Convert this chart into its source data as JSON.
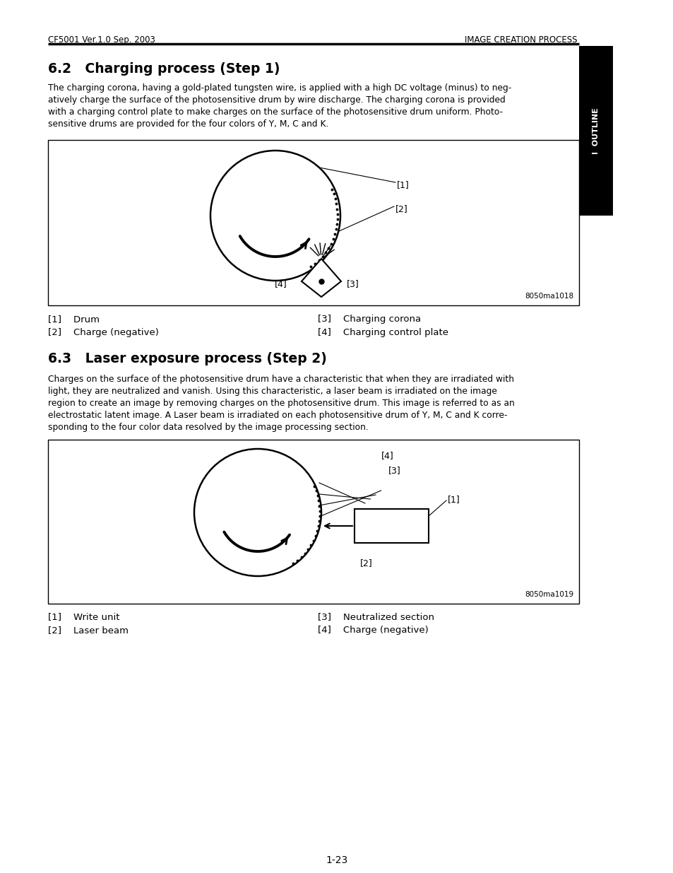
{
  "header_left": "CF5001 Ver.1.0 Sep. 2003",
  "header_right": "IMAGE CREATION PROCESS",
  "tab_label": "I  OUTLINE",
  "section1_title": "6.2   Charging process (Step 1)",
  "section1_body_lines": [
    "The charging corona, having a gold-plated tungsten wire, is applied with a high DC voltage (minus) to neg-",
    "atively charge the surface of the photosensitive drum by wire discharge. The charging corona is provided",
    "with a charging control plate to make charges on the surface of the photosensitive drum uniform. Photo-",
    "sensitive drums are provided for the four colors of Y, M, C and K."
  ],
  "diagram1_label": "8050ma1018",
  "diag1_items_left": [
    "[1]    Drum",
    "[2]    Charge (negative)"
  ],
  "diag1_items_right": [
    "[3]    Charging corona",
    "[4]    Charging control plate"
  ],
  "section2_title": "6.3   Laser exposure process (Step 2)",
  "section2_body_lines": [
    "Charges on the surface of the photosensitive drum have a characteristic that when they are irradiated with",
    "light, they are neutralized and vanish. Using this characteristic, a laser beam is irradiated on the image",
    "region to create an image by removing charges on the photosensitive drum. This image is referred to as an",
    "electrostatic latent image. A Laser beam is irradiated on each photosensitive drum of Y, M, C and K corre-",
    "sponding to the four color data resolved by the image processing section."
  ],
  "diagram2_label": "8050ma1019",
  "diag2_items_left": [
    "[1]    Write unit",
    "[2]    Laser beam"
  ],
  "diag2_items_right": [
    "[3]    Neutralized section",
    "[4]    Charge (negative)"
  ],
  "footer": "1-23",
  "bg_color": "#ffffff",
  "text_color": "#000000"
}
